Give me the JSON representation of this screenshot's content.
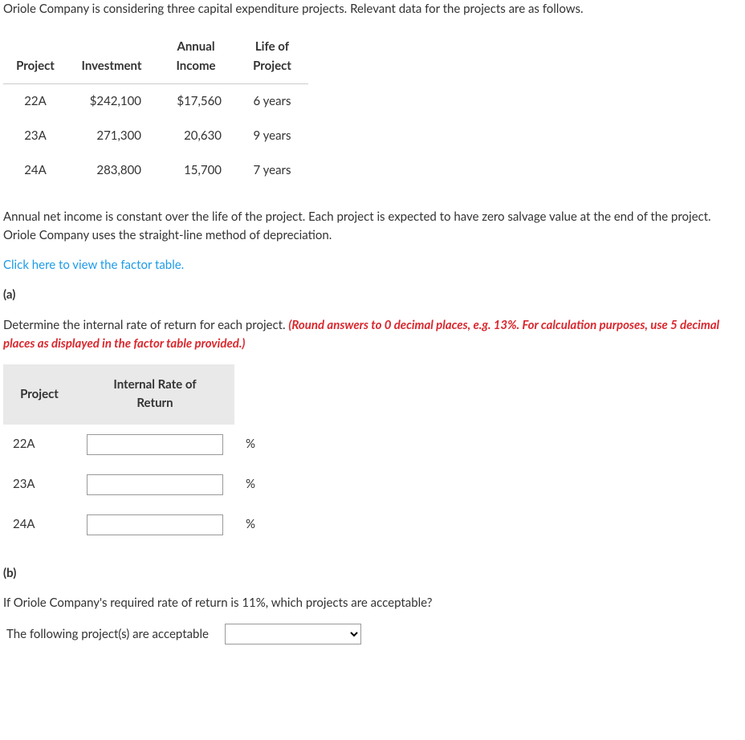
{
  "intro": "Oriole Company is considering three capital expenditure projects. Relevant data for the projects are as follows.",
  "table1": {
    "headers": {
      "project": "Project",
      "investment": "Investment",
      "income_l1": "Annual",
      "income_l2": "Income",
      "life_l1": "Life of",
      "life_l2": "Project"
    },
    "rows": [
      {
        "project": "22A",
        "investment": "$242,100",
        "income": "$17,560",
        "life": "6 years"
      },
      {
        "project": "23A",
        "investment": "271,300",
        "income": "20,630",
        "life": "9 years"
      },
      {
        "project": "24A",
        "investment": "283,800",
        "income": "15,700",
        "life": "7 years"
      }
    ]
  },
  "note1": "Annual net income is constant over the life of the project. Each project is expected to have zero salvage value at the end of the project. Oriole Company uses the straight-line method of depreciation.",
  "link_text": "Click here to view the factor table.",
  "part_a_label": "(a)",
  "part_a_q": "Determine the internal rate of return for each project. ",
  "part_a_hint": "(Round answers to 0 decimal places, e.g. 13%. For calculation purposes, use 5 decimal places as displayed in the factor table provided.)",
  "irr_table": {
    "h_project": "Project",
    "h_irr_l1": "Internal Rate of",
    "h_irr_l2": "Return",
    "rows": [
      "22A",
      "23A",
      "24A"
    ],
    "pct": "%"
  },
  "part_b_label": "(b)",
  "part_b_q": "If Oriole Company's required rate of return is 11%, which projects are acceptable?",
  "accept_label": "The following project(s) are acceptable"
}
